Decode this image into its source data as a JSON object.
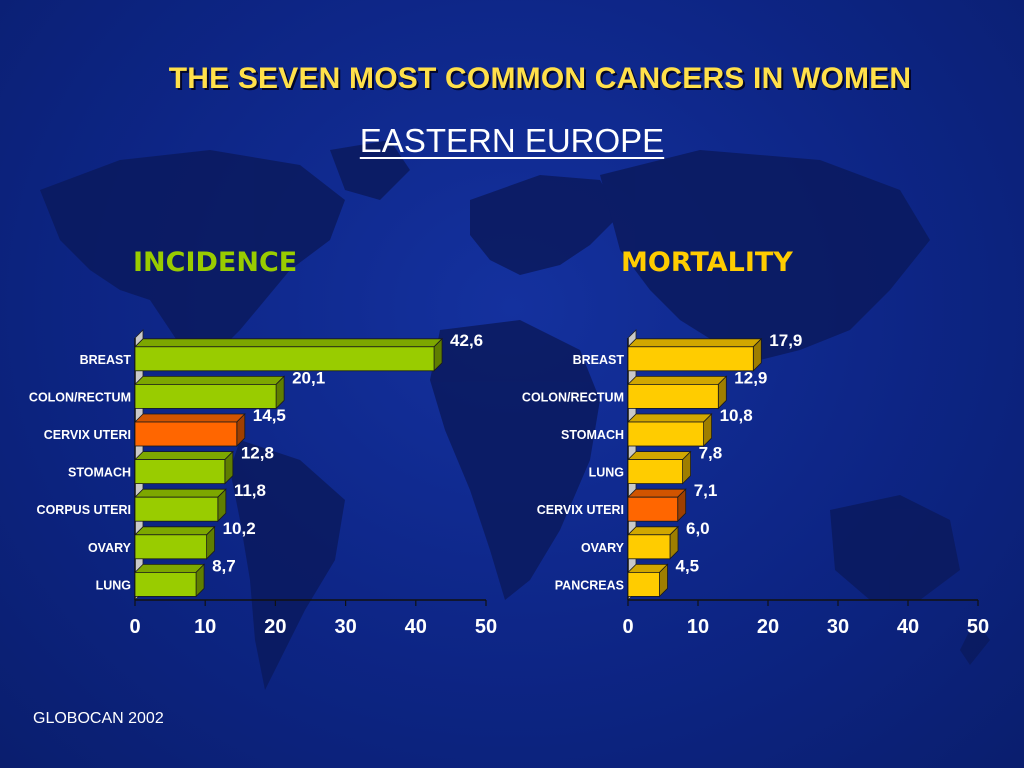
{
  "header": {
    "title": "THE SEVEN MOST COMMON CANCERS IN WOMEN",
    "subtitle": "EASTERN EUROPE"
  },
  "footer": {
    "source": "GLOBOCAN 2002"
  },
  "colors": {
    "background": "#0d2585",
    "map": "#0b1a5e",
    "green_bar": "#99cc00",
    "orange_bar": "#ff6600",
    "yellow_bar": "#ffcc00",
    "title_yellow": "#ffe04a",
    "incidence_title": "#99cc00",
    "mortality_title": "#ffcc00"
  },
  "chart_data": [
    {
      "type": "bar",
      "orientation": "horizontal",
      "title": "INCIDENCE",
      "categories": [
        "BREAST",
        "COLON/RECTUM",
        "CERVIX UTERI",
        "STOMACH",
        "CORPUS UTERI",
        "OVARY",
        "LUNG"
      ],
      "values": [
        42.6,
        20.1,
        14.5,
        12.8,
        11.8,
        10.2,
        8.7
      ],
      "value_labels": [
        "42,6",
        "20,1",
        "14,5",
        "12,8",
        "11,8",
        "10,2",
        "8,7"
      ],
      "bar_colors": [
        "#99cc00",
        "#99cc00",
        "#ff6600",
        "#99cc00",
        "#99cc00",
        "#99cc00",
        "#99cc00"
      ],
      "xlim": [
        0,
        50
      ],
      "xticks": [
        "0",
        "10",
        "20",
        "30",
        "40",
        "50"
      ]
    },
    {
      "type": "bar",
      "orientation": "horizontal",
      "title": "MORTALITY",
      "categories": [
        "BREAST",
        "COLON/RECTUM",
        "STOMACH",
        "LUNG",
        "CERVIX UTERI",
        "OVARY",
        "PANCREAS"
      ],
      "values": [
        17.9,
        12.9,
        10.8,
        7.8,
        7.1,
        6.0,
        4.5
      ],
      "value_labels": [
        "17,9",
        "12,9",
        "10,8",
        "7,8",
        "7,1",
        "6,0",
        "4,5"
      ],
      "bar_colors": [
        "#ffcc00",
        "#ffcc00",
        "#ffcc00",
        "#ffcc00",
        "#ff6600",
        "#ffcc00",
        "#ffcc00"
      ],
      "xlim": [
        0,
        50
      ],
      "xticks": [
        "0",
        "10",
        "20",
        "30",
        "40",
        "50"
      ]
    }
  ]
}
